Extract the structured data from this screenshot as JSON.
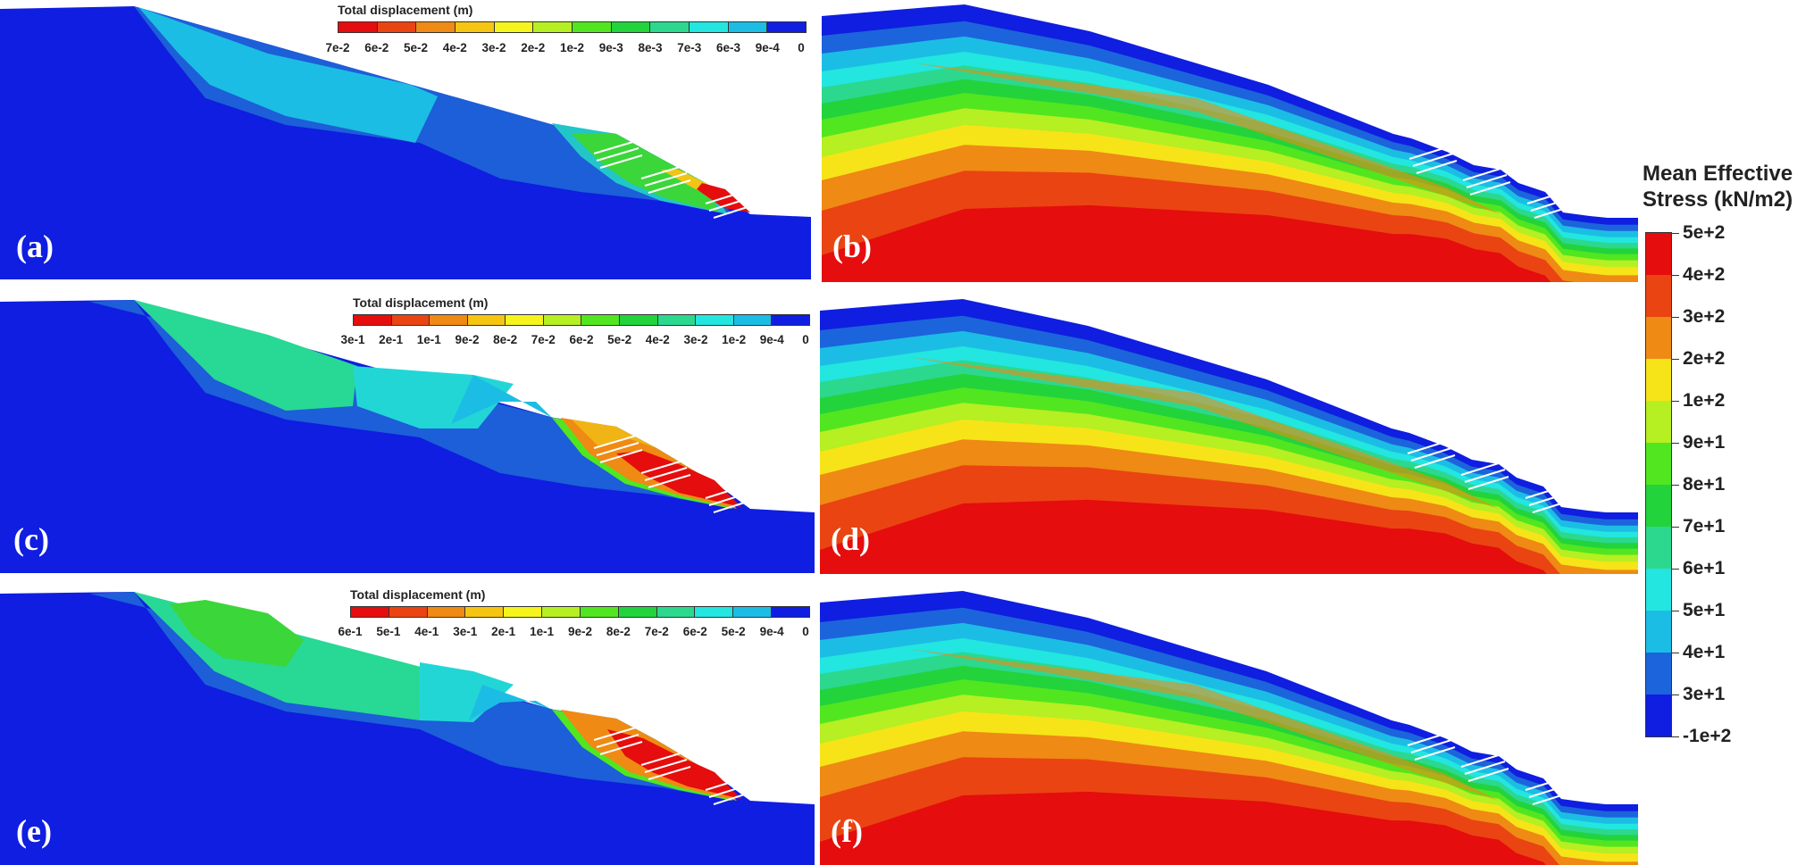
{
  "panels": {
    "a": {
      "label": "(a)"
    },
    "b": {
      "label": "(b)"
    },
    "c": {
      "label": "(c)"
    },
    "d": {
      "label": "(d)"
    },
    "e": {
      "label": "(e)"
    },
    "f": {
      "label": "(f)"
    }
  },
  "displacement_legends": [
    {
      "title": "Total displacement (m)",
      "ticks": [
        "7e-2",
        "6e-2",
        "5e-2",
        "4e-2",
        "3e-2",
        "2e-2",
        "1e-2",
        "9e-3",
        "8e-3",
        "7e-3",
        "6e-3",
        "9e-4",
        "0"
      ]
    },
    {
      "title": "Total displacement (m)",
      "ticks": [
        "3e-1",
        "2e-1",
        "1e-1",
        "9e-2",
        "8e-2",
        "7e-2",
        "6e-2",
        "5e-2",
        "4e-2",
        "3e-2",
        "1e-2",
        "9e-4",
        "0"
      ]
    },
    {
      "title": "Total displacement (m)",
      "ticks": [
        "6e-1",
        "5e-1",
        "4e-1",
        "3e-1",
        "2e-1",
        "1e-1",
        "9e-2",
        "8e-2",
        "7e-2",
        "6e-2",
        "5e-2",
        "9e-4",
        "0"
      ]
    }
  ],
  "stress_legend": {
    "title_line1": "Mean Effective",
    "title_line2": "Stress (kN/m2)",
    "ticks": [
      "5e+2",
      "4e+2",
      "3e+2",
      "2e+2",
      "1e+2",
      "9e+1",
      "8e+1",
      "7e+1",
      "6e+1",
      "5e+1",
      "4e+1",
      "3e+1",
      "-1e+2"
    ]
  },
  "colors": {
    "scale": [
      "#e50d0d",
      "#ea4412",
      "#ef8a14",
      "#f6c512",
      "#f5f51d",
      "#b6ef22",
      "#52e620",
      "#22d33c",
      "#2cd88e",
      "#22e6df",
      "#1cbde4",
      "#1c64db",
      "#0f1ee0"
    ],
    "background_blue": "#0f1ee0",
    "sky": "#ffffff"
  }
}
